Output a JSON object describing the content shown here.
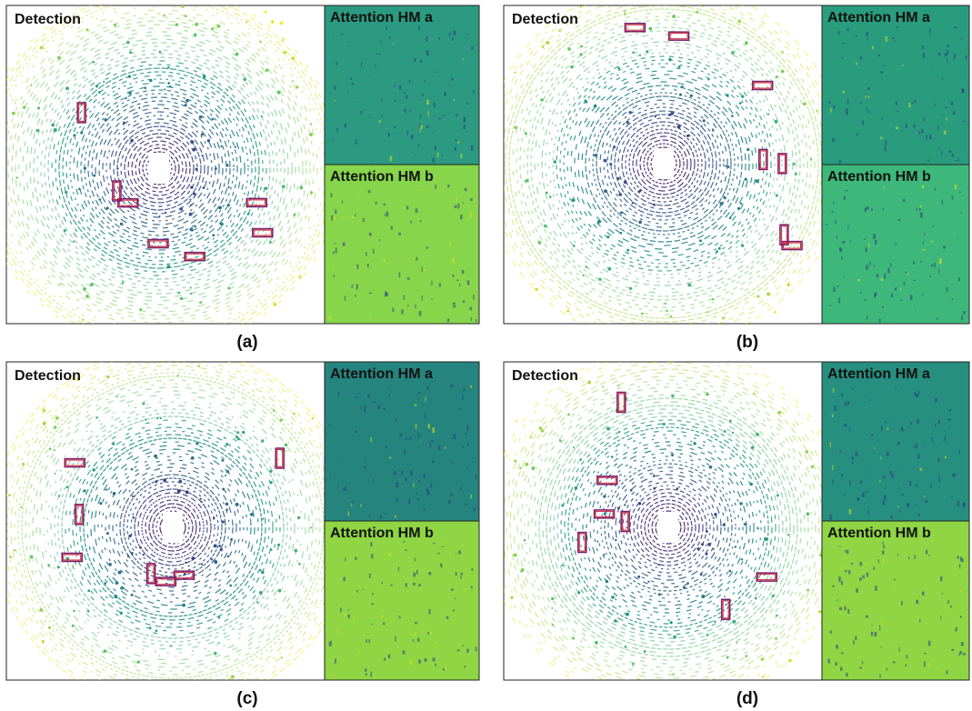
{
  "panels": [
    {
      "detection_label": "Detection",
      "heatmap_a_label": "Attention HM a",
      "heatmap_b_label": "Attention HM b",
      "caption": "(a)"
    },
    {
      "detection_label": "Detection",
      "heatmap_a_label": "Attention HM a",
      "heatmap_b_label": "Attention HM b",
      "caption": "(b)"
    },
    {
      "detection_label": "Detection",
      "heatmap_a_label": "Attention HM a",
      "heatmap_b_label": "Attention HM b",
      "caption": "(c)"
    },
    {
      "detection_label": "Detection",
      "heatmap_a_label": "Attention HM a",
      "heatmap_b_label": "Attention HM b",
      "caption": "(d)"
    }
  ]
}
